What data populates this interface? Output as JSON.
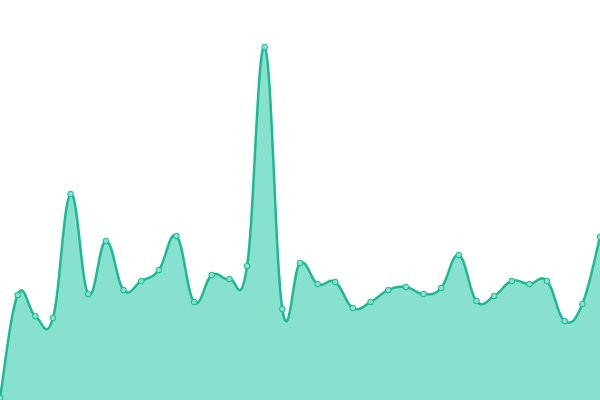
{
  "chart_data": {
    "type": "area",
    "categories": [
      null,
      null,
      null,
      null,
      null,
      null,
      null,
      null,
      null,
      null,
      null,
      null,
      null,
      null,
      null,
      null,
      null,
      null,
      null,
      null,
      null,
      null,
      null,
      null,
      null,
      null,
      null,
      null,
      null,
      null,
      null,
      null,
      null,
      null,
      null
    ],
    "values": [
      2,
      105,
      84,
      82,
      206,
      106,
      159,
      110,
      119,
      130,
      164,
      98,
      125,
      121,
      134,
      353,
      91,
      137,
      116,
      118,
      92,
      98,
      110,
      113,
      106,
      112,
      145,
      99,
      104,
      119,
      116,
      119,
      79,
      96,
      163
    ],
    "ylim": [
      0,
      400
    ],
    "color": "#1fb894",
    "fill_color": "#88e0cf"
  }
}
